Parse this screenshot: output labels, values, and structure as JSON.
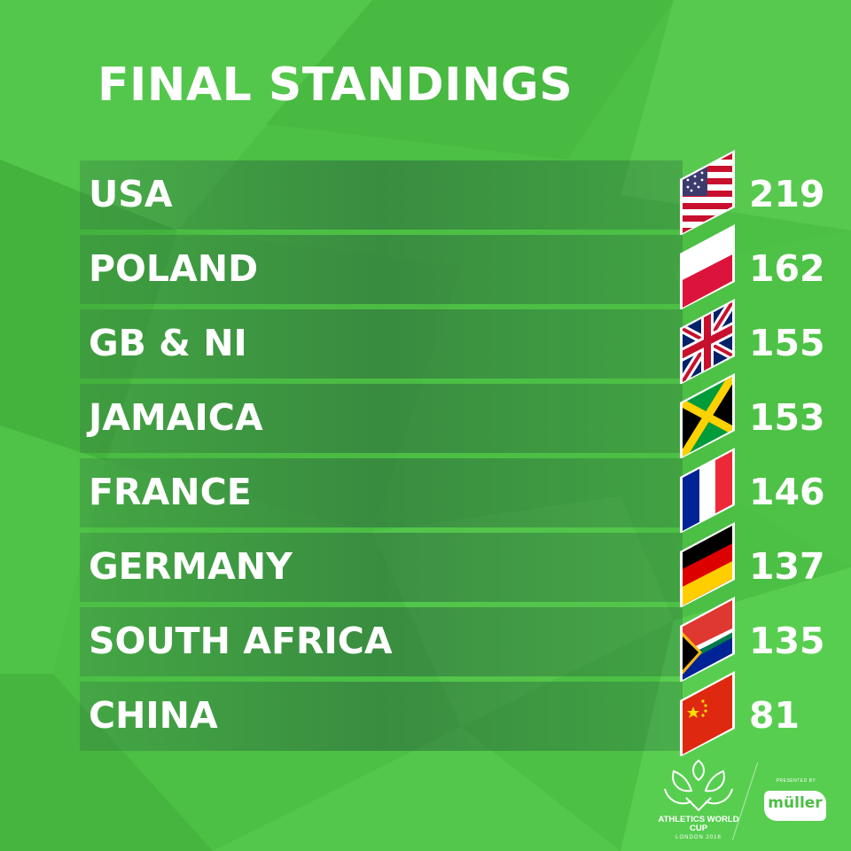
{
  "title": "FINAL STANDINGS",
  "colors": {
    "background": "#4cbf45",
    "text": "#ffffff"
  },
  "standings": [
    {
      "country": "USA",
      "score": "219",
      "flag_icon": "usa-flag-icon"
    },
    {
      "country": "POLAND",
      "score": "162",
      "flag_icon": "poland-flag-icon"
    },
    {
      "country": "GB & NI",
      "score": "155",
      "flag_icon": "gb-flag-icon"
    },
    {
      "country": "JAMAICA",
      "score": "153",
      "flag_icon": "jamaica-flag-icon"
    },
    {
      "country": "FRANCE",
      "score": "146",
      "flag_icon": "france-flag-icon"
    },
    {
      "country": "GERMANY",
      "score": "137",
      "flag_icon": "germany-flag-icon"
    },
    {
      "country": "SOUTH AFRICA",
      "score": "135",
      "flag_icon": "south-africa-flag-icon"
    },
    {
      "country": "CHINA",
      "score": "81",
      "flag_icon": "china-flag-icon"
    }
  ],
  "footer": {
    "event_name": "ATHLETICS WORLD CUP",
    "event_location": "LONDON 2018",
    "presented_by": "PRESENTED BY",
    "sponsor": "müller"
  }
}
